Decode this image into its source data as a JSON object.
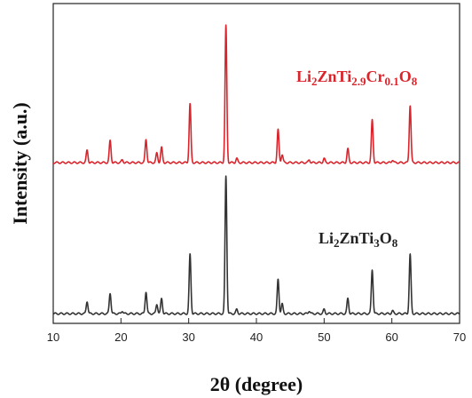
{
  "chart_data": {
    "type": "line",
    "title": "",
    "xlabel": "2θ (degree)",
    "ylabel": "Intensity (a.u.)",
    "xlim": [
      10,
      70
    ],
    "x_ticks": [
      10,
      20,
      30,
      40,
      50,
      60,
      70
    ],
    "y_ticks_shown": false,
    "grid": false,
    "legend": "inline-labels",
    "series": [
      {
        "name": "Li2ZnTi2.9Cr0.1O8",
        "label_parts": [
          {
            "t": "Li",
            "sub": false
          },
          {
            "t": "2",
            "sub": true
          },
          {
            "t": "ZnTi",
            "sub": false
          },
          {
            "t": "2.9",
            "sub": true
          },
          {
            "t": "Cr",
            "sub": false
          },
          {
            "t": "0.1",
            "sub": true
          },
          {
            "t": "O",
            "sub": false
          },
          {
            "t": "8",
            "sub": true
          }
        ],
        "color": "#d9242b",
        "baseline": 0.02,
        "peaks": [
          {
            "x": 15.0,
            "h": 0.09
          },
          {
            "x": 18.4,
            "h": 0.16
          },
          {
            "x": 20.2,
            "h": 0.02
          },
          {
            "x": 23.7,
            "h": 0.17
          },
          {
            "x": 25.3,
            "h": 0.07
          },
          {
            "x": 26.0,
            "h": 0.11
          },
          {
            "x": 30.2,
            "h": 0.43
          },
          {
            "x": 35.5,
            "h": 1.0
          },
          {
            "x": 37.1,
            "h": 0.03
          },
          {
            "x": 43.2,
            "h": 0.24
          },
          {
            "x": 43.8,
            "h": 0.06
          },
          {
            "x": 47.8,
            "h": 0.02
          },
          {
            "x": 50.0,
            "h": 0.03
          },
          {
            "x": 53.5,
            "h": 0.1
          },
          {
            "x": 57.1,
            "h": 0.31
          },
          {
            "x": 60.1,
            "h": 0.02
          },
          {
            "x": 62.7,
            "h": 0.42
          }
        ]
      },
      {
        "name": "Li2ZnTi3O8",
        "label_parts": [
          {
            "t": "Li",
            "sub": false
          },
          {
            "t": "2",
            "sub": true
          },
          {
            "t": "ZnTi",
            "sub": false
          },
          {
            "t": "3",
            "sub": true
          },
          {
            "t": "O",
            "sub": false
          },
          {
            "t": "8",
            "sub": true
          }
        ],
        "color": "#333333",
        "baseline": 0.02,
        "peaks": [
          {
            "x": 15.0,
            "h": 0.09
          },
          {
            "x": 18.4,
            "h": 0.15
          },
          {
            "x": 20.2,
            "h": 0.02
          },
          {
            "x": 23.7,
            "h": 0.16
          },
          {
            "x": 25.3,
            "h": 0.07
          },
          {
            "x": 26.0,
            "h": 0.11
          },
          {
            "x": 30.2,
            "h": 0.43
          },
          {
            "x": 35.5,
            "h": 1.0
          },
          {
            "x": 37.1,
            "h": 0.03
          },
          {
            "x": 43.2,
            "h": 0.25
          },
          {
            "x": 43.8,
            "h": 0.07
          },
          {
            "x": 47.8,
            "h": 0.02
          },
          {
            "x": 50.0,
            "h": 0.03
          },
          {
            "x": 53.5,
            "h": 0.11
          },
          {
            "x": 57.1,
            "h": 0.32
          },
          {
            "x": 60.1,
            "h": 0.02
          },
          {
            "x": 62.7,
            "h": 0.43
          }
        ]
      }
    ]
  }
}
